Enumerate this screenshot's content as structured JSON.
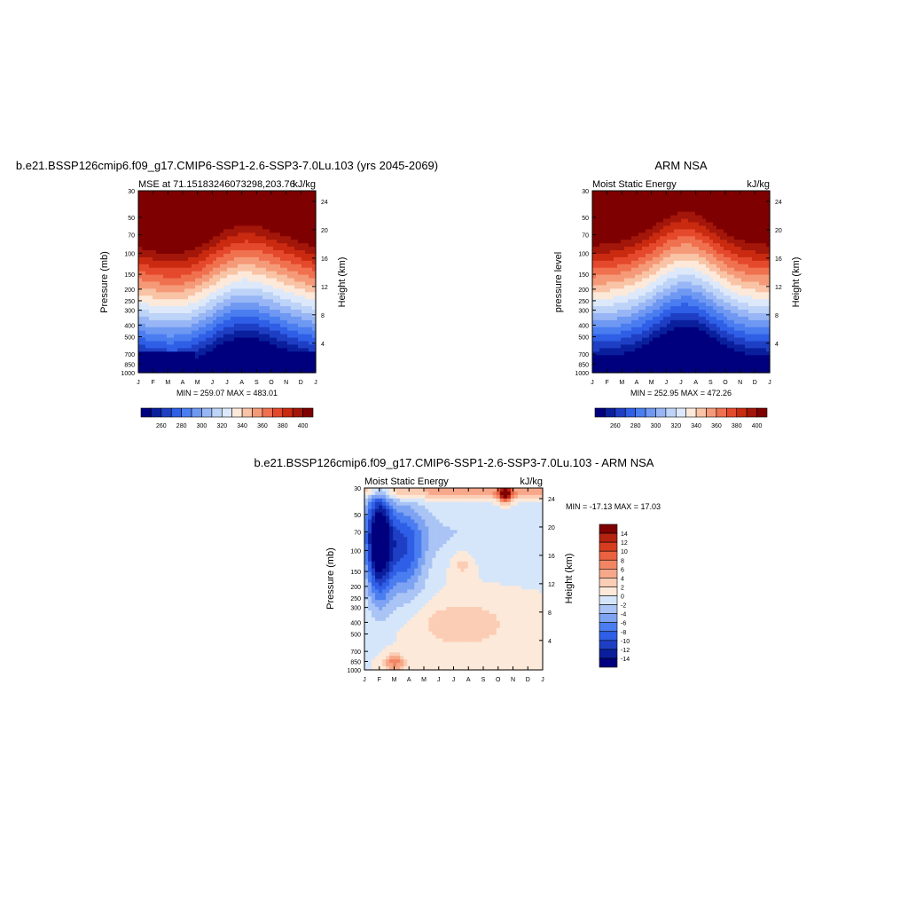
{
  "colors": {
    "mse_scale": [
      "#00007f",
      "#0a1f9c",
      "#1e3fc4",
      "#2f5fe6",
      "#4a7df0",
      "#6e98f2",
      "#98b6f5",
      "#bdd3f7",
      "#dde9fa",
      "#fde9d9",
      "#f9c3a6",
      "#f59a78",
      "#f0714f",
      "#e5492c",
      "#c92a10",
      "#a3160a",
      "#7f0000"
    ],
    "diff_scale": [
      "#00007f",
      "#0a1f9c",
      "#1e3fc4",
      "#2f5fe6",
      "#4a7df0",
      "#7ea3f2",
      "#a9c4f5",
      "#d6e6fa",
      "#fde9d9",
      "#fbcdb4",
      "#f7a88a",
      "#f28664",
      "#ea6240",
      "#d63d1f",
      "#b52210",
      "#7f0000"
    ]
  },
  "chart_data": [
    {
      "type": "heatmap",
      "title": "b.e21.BSSP126cmip6.f09_g17.CMIP6-SSP1-2.6-SSP3-7.0Lu.103 (yrs 2045-2069)",
      "left_string": "MSE at 71.1518324607329​8,203.76",
      "right_string": "kJ/kg",
      "ylabel": "Pressure (mb)",
      "ylabel_right": "Height (km)",
      "x_ticks": [
        "J",
        "F",
        "M",
        "A",
        "M",
        "J",
        "J",
        "A",
        "S",
        "O",
        "N",
        "D",
        "J"
      ],
      "y_ticks": [
        "30",
        "50",
        "70",
        "100",
        "150",
        "200",
        "250",
        "300",
        "400",
        "500",
        "700",
        "850",
        "1000"
      ],
      "y_ticks_right": [
        "24",
        "20",
        "16",
        "12",
        "8",
        "4"
      ],
      "min_max": "MIN = 259.07 MAX = 483.01",
      "colorbar_labels": [
        "260",
        "280",
        "300",
        "320",
        "340",
        "360",
        "380",
        "400"
      ],
      "min": 259.07,
      "max": 483.01
    },
    {
      "type": "heatmap",
      "title": "ARM NSA",
      "left_string": "Moist Static Energy",
      "right_string": "kJ/kg",
      "ylabel": "pressure level",
      "ylabel_right": "Height (km)",
      "x_ticks": [
        "J",
        "F",
        "M",
        "A",
        "M",
        "J",
        "J",
        "A",
        "S",
        "O",
        "N",
        "D",
        "J"
      ],
      "y_ticks": [
        "30",
        "50",
        "70",
        "100",
        "150",
        "200",
        "250",
        "300",
        "400",
        "500",
        "700",
        "850",
        "1000"
      ],
      "y_ticks_right": [
        "24",
        "20",
        "16",
        "12",
        "8",
        "4"
      ],
      "min_max": "MIN = 252.95 MAX = 472.26",
      "colorbar_labels": [
        "260",
        "280",
        "300",
        "320",
        "340",
        "360",
        "380",
        "400"
      ],
      "min": 252.95,
      "max": 472.26
    },
    {
      "type": "heatmap",
      "title": "b.e21.BSSP126cmip6.f09_g17.CMIP6-SSP1-2.6-SSP3-7.0Lu.103 - ARM NSA",
      "left_string": "Moist Static Energy",
      "right_string": "kJ/kg",
      "ylabel": "Pressure (mb)",
      "ylabel_right": "Height (km)",
      "x_ticks": [
        "J",
        "F",
        "M",
        "A",
        "M",
        "J",
        "J",
        "A",
        "S",
        "O",
        "N",
        "D",
        "J"
      ],
      "y_ticks": [
        "30",
        "50",
        "70",
        "100",
        "150",
        "200",
        "250",
        "300",
        "400",
        "500",
        "700",
        "850",
        "1000"
      ],
      "y_ticks_right": [
        "24",
        "20",
        "16",
        "12",
        "8",
        "4"
      ],
      "min_max": "MIN = -17.13 MAX =  17.03",
      "colorbar_labels": [
        "14",
        "12",
        "10",
        "8",
        "6",
        "4",
        "2",
        "0",
        "-2",
        "-4",
        "-6",
        "-8",
        "-10",
        "-12",
        "-14"
      ],
      "min": -17.13,
      "max": 17.03
    }
  ]
}
